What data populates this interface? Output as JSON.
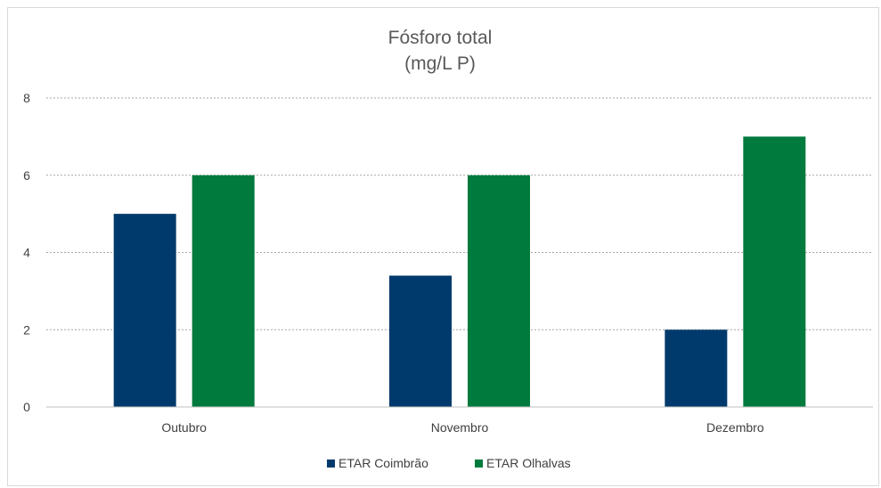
{
  "chart_data": {
    "type": "bar",
    "title": "Fósforo total",
    "subtitle": "(mg/L P)",
    "categories": [
      "Outubro",
      "Novembro",
      "Dezembro"
    ],
    "series": [
      {
        "name": "ETAR Coimbrão",
        "color": "#003A6C",
        "values": [
          5,
          3.4,
          2
        ]
      },
      {
        "name": "ETAR Olhalvas",
        "color": "#007A3D",
        "values": [
          6,
          6,
          7
        ]
      }
    ],
    "ylim": [
      0,
      8
    ],
    "yticks": [
      0,
      2,
      4,
      6,
      8
    ],
    "grid": true,
    "legend_position": "bottom"
  }
}
